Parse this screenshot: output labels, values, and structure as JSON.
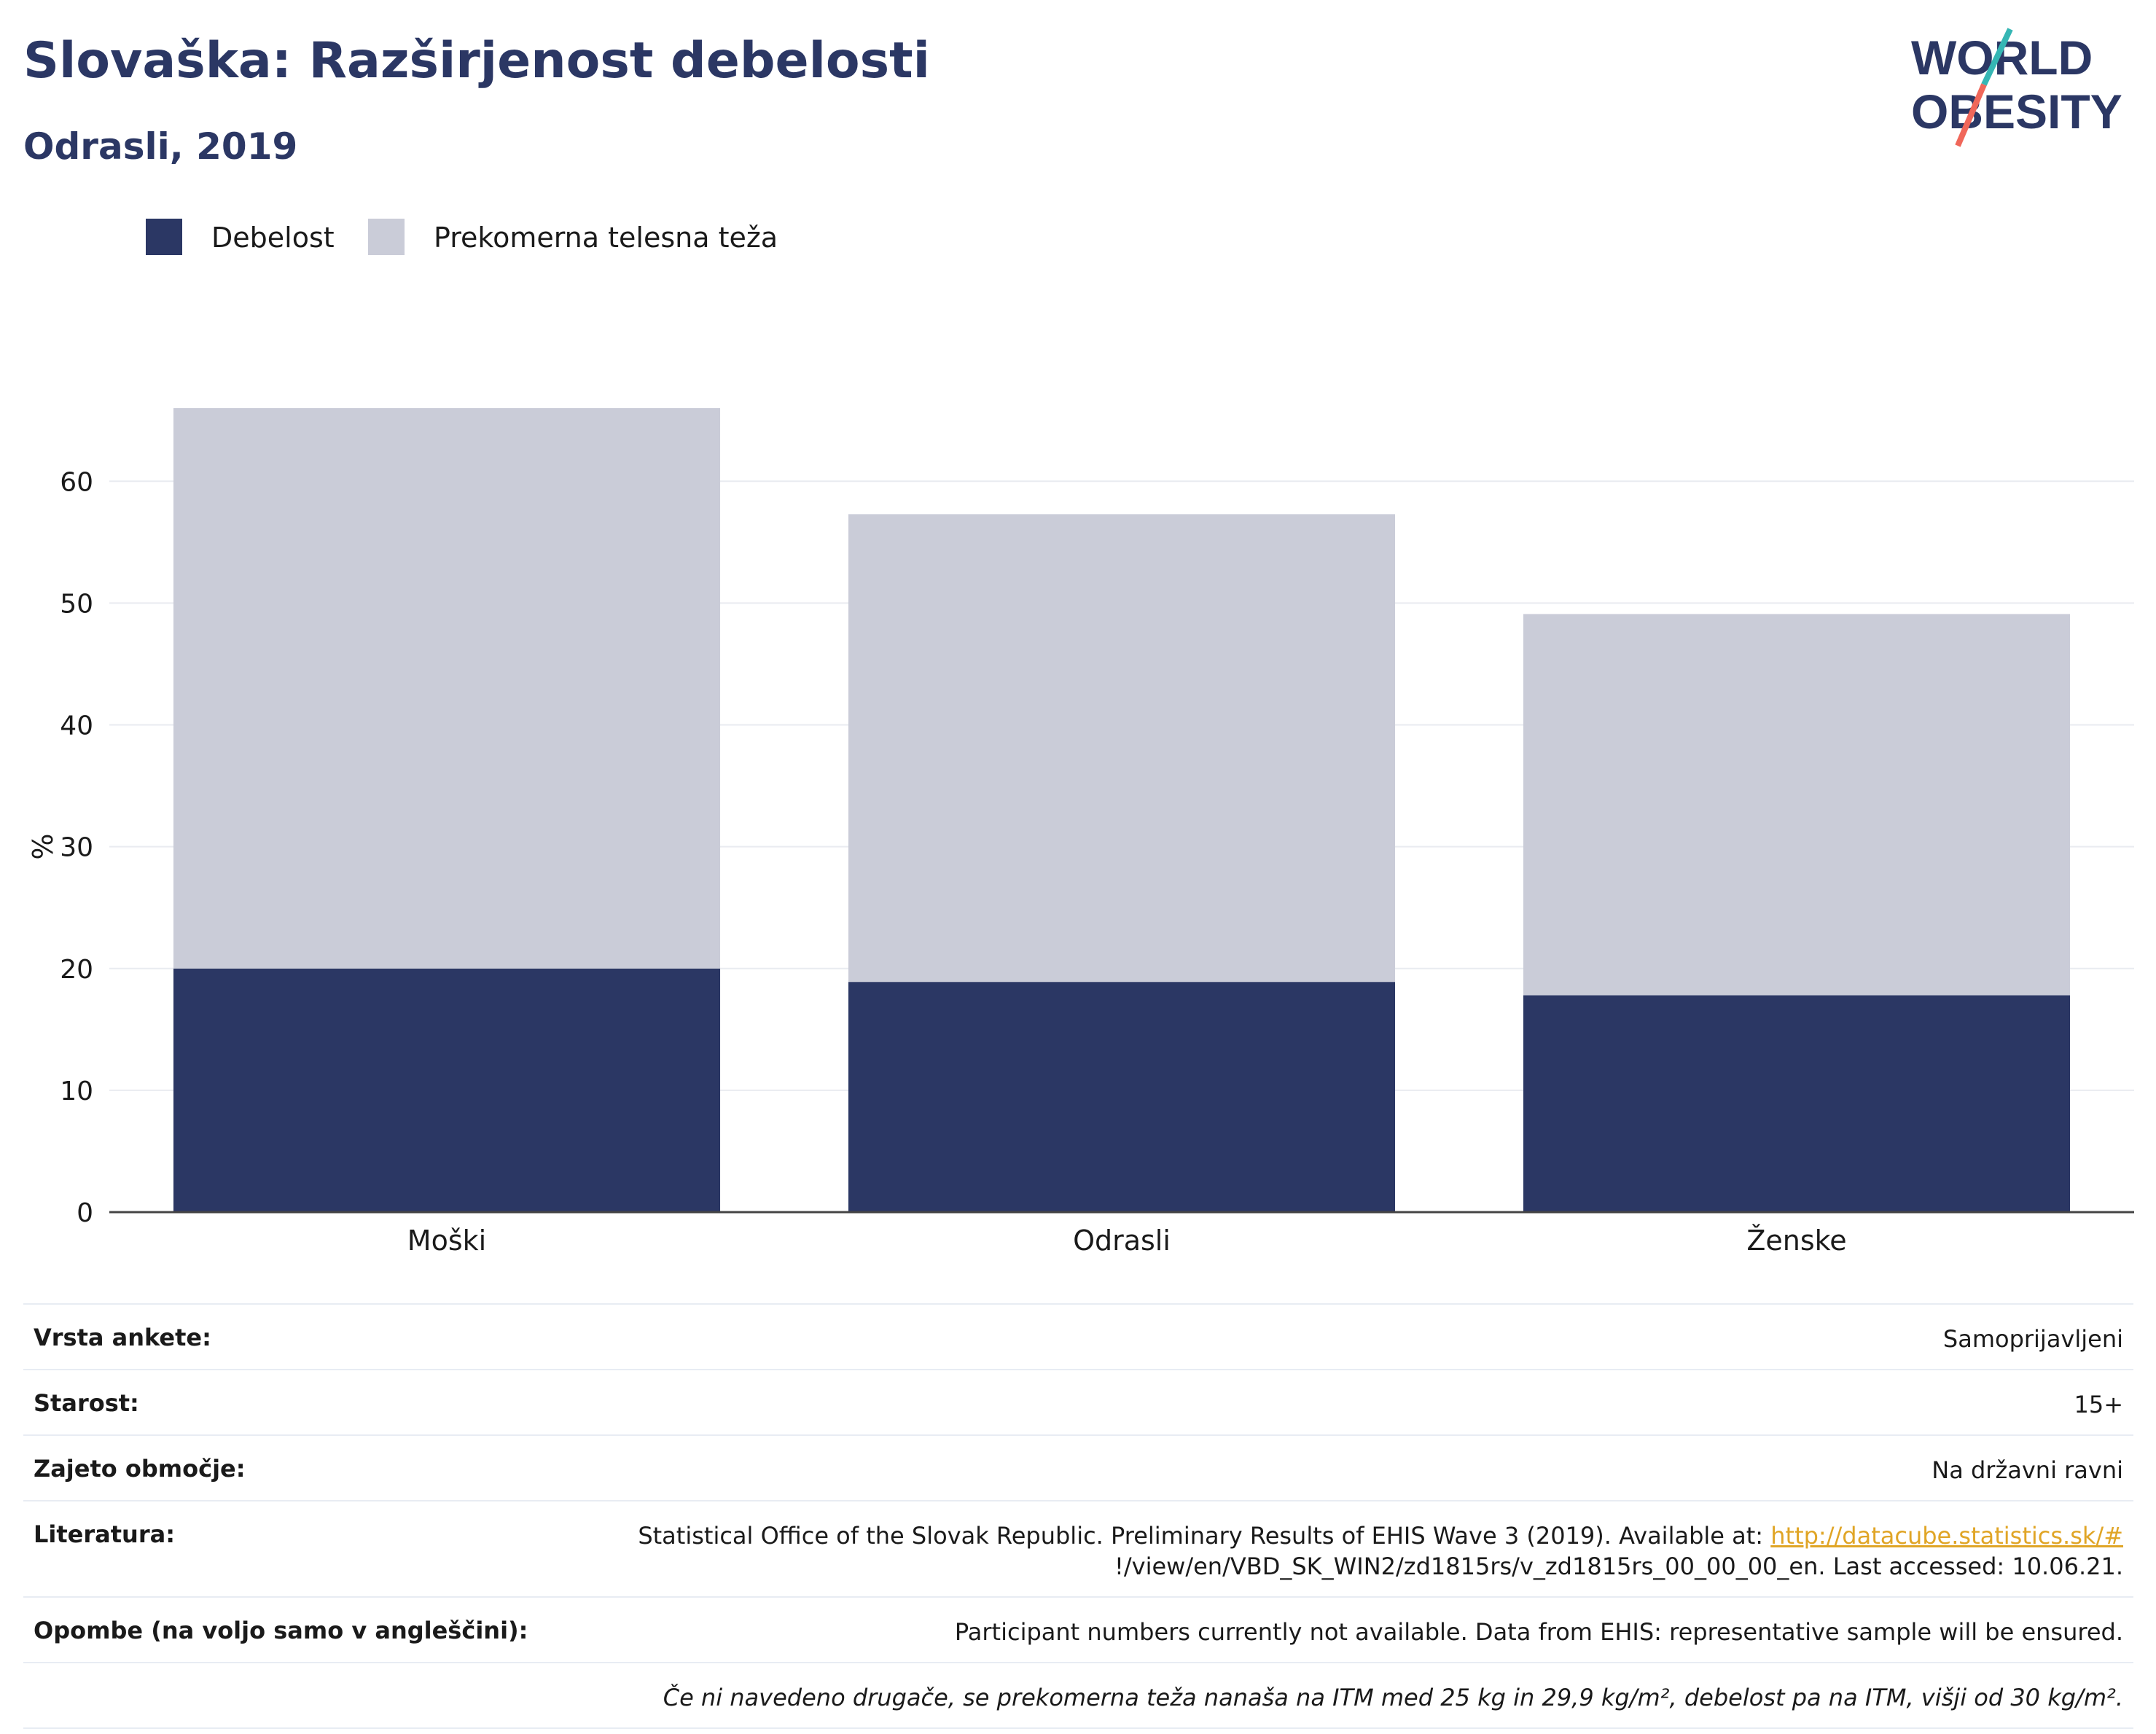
{
  "header": {
    "title": "Slovaška: Razširjenost debelosti",
    "subtitle": "Odrasli, 2019"
  },
  "logo": {
    "line1": "WORLD",
    "line2": "OBESITY",
    "text_color": "#2b3764",
    "slash_colors": [
      "#35b6b4",
      "#f0675a"
    ]
  },
  "legend": [
    {
      "label": "Debelost",
      "color": "#2b3764"
    },
    {
      "label": "Prekomerna telesna teža",
      "color": "#caccd8"
    }
  ],
  "chart_data": {
    "type": "bar",
    "stacked": true,
    "categories": [
      "Moški",
      "Odrasli",
      "Ženske"
    ],
    "series": [
      {
        "name": "Debelost",
        "color": "#2b3764",
        "values": [
          20.0,
          18.9,
          17.8
        ]
      },
      {
        "name": "Prekomerna telesna teža",
        "color": "#caccd8",
        "values": [
          46.0,
          38.4,
          31.3
        ]
      }
    ],
    "ylabel": "%",
    "ylim": [
      0,
      66
    ],
    "yticks": [
      0,
      10,
      20,
      30,
      40,
      50,
      60
    ],
    "grid": true,
    "legend_position": "top-left"
  },
  "info": {
    "survey_label": "Vrsta ankete:",
    "survey_value": "Samoprijavljeni",
    "age_label": "Starost:",
    "age_value": "15+",
    "coverage_label": "Zajeto območje:",
    "coverage_value": "Na državni ravni",
    "ref_label": "Literatura:",
    "ref_text": "Statistical Office of the Slovak Republic. Preliminary Results of EHIS Wave 3 (2019). Available at: ",
    "ref_link": "http://datacube.statistics.sk/#",
    "ref_text2": "!/view/en/VBD_SK_WIN2/zd1815rs/v_zd1815rs_00_00_00_en. Last accessed: 10.06.21.",
    "notes_label": "Opombe (na voljo samo v angleščini):",
    "notes_value": "Participant numbers currently not available. Data from EHIS: representative sample will be ensured.",
    "footnote": "Če ni navedeno drugače, se prekomerna teža nanaša na ITM med 25 kg in 29,9 kg/m², debelost pa na ITM, višji od 30 kg/m²."
  }
}
